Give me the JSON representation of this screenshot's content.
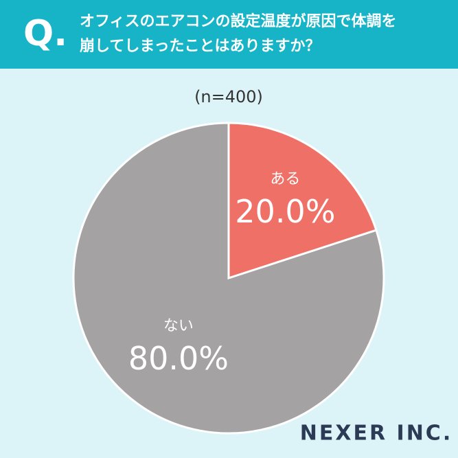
{
  "chart_data": {
    "type": "pie",
    "question_mark": "Q.",
    "title": "オフィスのエアコンの設定温度が原因で体調を崩してしまったことはありますか？",
    "subtitle": "(n=400)",
    "categories": [
      "ある",
      "ない"
    ],
    "values": [
      20,
      80
    ],
    "value_labels": [
      "20.0%",
      "80.0%"
    ],
    "colors": [
      "#ee7066",
      "#a4a2a3"
    ],
    "brand": "NEXER INC."
  }
}
